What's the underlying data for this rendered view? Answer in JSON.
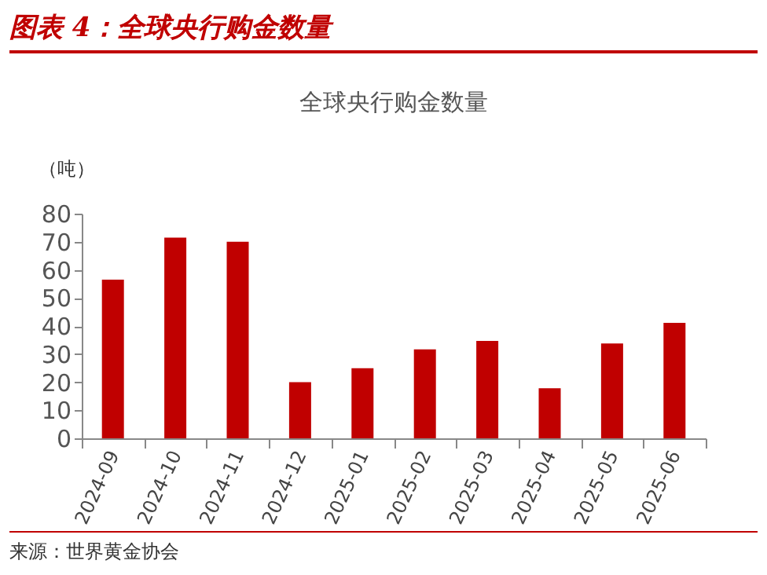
{
  "chart_data": {
    "type": "bar",
    "title": "全球央行购金数量",
    "ylabel": "（吨）",
    "categories": [
      "2024-09",
      "2024-10",
      "2024-11",
      "2024-12",
      "2025-01",
      "2025-02",
      "2025-03",
      "2025-04",
      "2025-05",
      "2025-06"
    ],
    "values": [
      56.5,
      71.5,
      70,
      20,
      25,
      31.7,
      34.7,
      17.8,
      33.8,
      41.1
    ],
    "color": "#c00000",
    "ylim": [
      0,
      80
    ],
    "yticks": [
      0,
      10,
      20,
      30,
      40,
      50,
      60,
      70,
      80
    ],
    "grid": false,
    "annotations": [
      "图表 4：全球央行购金数量",
      "来源：世界黄金协会"
    ]
  }
}
